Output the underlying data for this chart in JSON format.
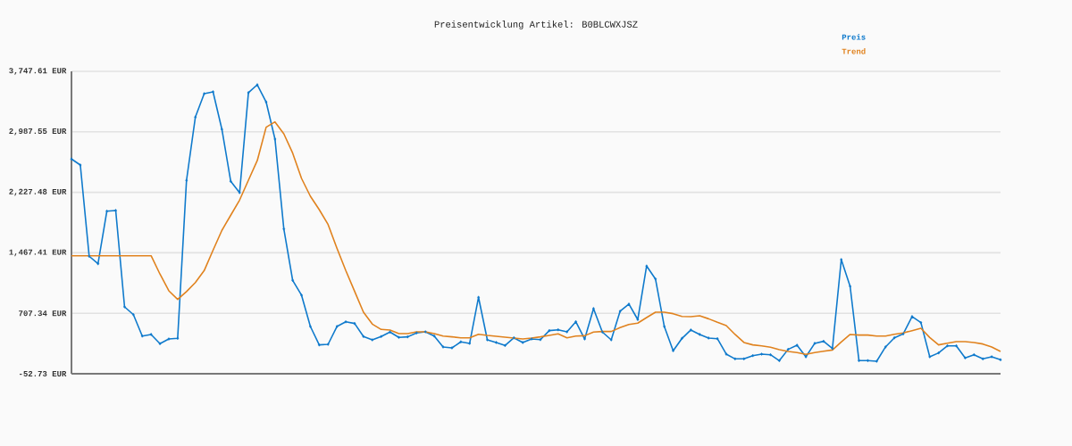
{
  "chart_data": {
    "type": "line",
    "title": "Preisentwicklung Artikel: B0BLCWXJSZ",
    "categories": [
      null,
      null,
      null,
      null,
      null,
      null,
      null,
      null,
      null,
      null,
      null,
      null,
      null,
      null,
      null,
      null,
      null,
      null,
      null,
      null,
      null,
      null,
      null,
      null,
      null,
      null,
      null,
      null,
      null,
      null,
      null,
      null,
      null,
      null,
      null,
      null,
      null,
      null,
      null,
      null,
      null,
      null,
      null,
      null,
      null,
      null,
      null,
      null,
      null,
      null,
      null,
      null,
      null,
      null,
      null,
      null,
      null,
      null,
      null,
      null,
      null,
      null,
      null,
      null,
      null,
      null,
      null,
      null,
      null,
      null,
      null,
      null,
      null,
      null,
      null,
      null,
      null,
      null,
      null,
      null,
      null,
      null,
      null,
      null,
      null,
      null,
      null,
      null,
      null,
      null,
      null,
      null,
      null,
      null,
      null,
      null,
      null,
      null,
      null,
      null,
      null,
      null,
      null,
      null,
      null,
      null
    ],
    "series": [
      {
        "name": "Preis",
        "color": "#0f7acc",
        "marker": "diamond",
        "values": [
          2646,
          2570,
          1424,
          1330,
          1991,
          1999,
          788,
          690,
          421,
          441,
          325,
          384,
          392,
          2377,
          3172,
          3467,
          3490,
          3019,
          2365,
          2223,
          3479,
          3579,
          3363,
          2896,
          1767,
          1121,
          934,
          541,
          310,
          317,
          541,
          600,
          579,
          415,
          373,
          415,
          471,
          404,
          411,
          460,
          474,
          421,
          284,
          272,
          348,
          329,
          908,
          373,
          340,
          302,
          399,
          340,
          384,
          376,
          489,
          500,
          474,
          601,
          384,
          766,
          471,
          373,
          732,
          822,
          628,
          1301,
          1139,
          541,
          236,
          392,
          497,
          441,
          396,
          388,
          194,
          134,
          134,
          175,
          194,
          186,
          112,
          254,
          306,
          160,
          329,
          355,
          265,
          1382,
          1046,
          112,
          112,
          104,
          284,
          399,
          448,
          665,
          590,
          160,
          209,
          298,
          298,
          146,
          186,
          134,
          160,
          123
        ]
      },
      {
        "name": "Trend",
        "color": "#e0821e",
        "marker": "none",
        "values": [
          1430,
          1430,
          1430,
          1430,
          1430,
          1430,
          1430,
          1430,
          1430,
          1430,
          1200,
          990,
          882,
          980,
          1094,
          1244,
          1500,
          1749,
          1940,
          2130,
          2380,
          2627,
          3045,
          3112,
          2963,
          2720,
          2402,
          2178,
          2010,
          1823,
          1525,
          1244,
          982,
          720,
          571,
          504,
          497,
          452,
          452,
          474,
          474,
          452,
          421,
          411,
          399,
          399,
          444,
          429,
          418,
          407,
          396,
          384,
          396,
          411,
          429,
          448,
          399,
          421,
          425,
          471,
          478,
          478,
          527,
          567,
          583,
          653,
          720,
          720,
          702,
          668,
          665,
          676,
          638,
          594,
          553,
          441,
          340,
          310,
          298,
          280,
          250,
          228,
          213,
          190,
          213,
          231,
          246,
          347,
          441,
          433,
          433,
          421,
          421,
          444,
          460,
          489,
          519,
          403,
          310,
          332,
          351,
          351,
          340,
          321,
          284,
          228
        ]
      }
    ],
    "ylim": [
      -52.73,
      3747.61
    ],
    "yticks": [
      {
        "value": -52.73,
        "label": "-52.73 EUR"
      },
      {
        "value": 707.34,
        "label": "707.34 EUR"
      },
      {
        "value": 1467.41,
        "label": "1,467.41 EUR"
      },
      {
        "value": 2227.48,
        "label": "2,227.48 EUR"
      },
      {
        "value": 2987.55,
        "label": "2,987.55 EUR"
      },
      {
        "value": 3747.61,
        "label": "3,747.61 EUR"
      }
    ],
    "grid": "y",
    "legend": "top right",
    "line_style": "solid"
  }
}
